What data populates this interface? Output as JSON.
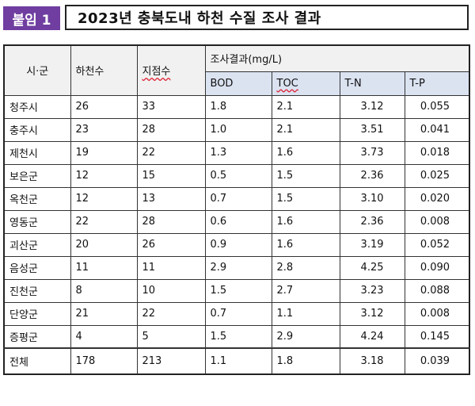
{
  "badge": "붙임 1",
  "title": "2023년 충북도내 하천 수질 조사 결과",
  "table": {
    "headers": {
      "region": "시·군",
      "rivers": "하천수",
      "sites": "지점수",
      "results_group": "조사결과(mg/L)",
      "bod": "BOD",
      "toc": "TOC",
      "tn": "T-N",
      "tp": "T-P"
    },
    "rows": [
      [
        "청주시",
        "26",
        "33",
        "1.8",
        "2.1",
        "3.12",
        "0.055"
      ],
      [
        "충주시",
        "23",
        "28",
        "1.0",
        "2.1",
        "3.51",
        "0.041"
      ],
      [
        "제천시",
        "19",
        "22",
        "1.3",
        "1.6",
        "3.73",
        "0.018"
      ],
      [
        "보은군",
        "12",
        "15",
        "0.5",
        "1.5",
        "2.36",
        "0.025"
      ],
      [
        "옥천군",
        "12",
        "13",
        "0.7",
        "1.5",
        "3.10",
        "0.020"
      ],
      [
        "영동군",
        "22",
        "28",
        "0.6",
        "1.6",
        "2.36",
        "0.008"
      ],
      [
        "괴산군",
        "20",
        "26",
        "0.9",
        "1.6",
        "3.19",
        "0.052"
      ],
      [
        "음성군",
        "11",
        "11",
        "2.9",
        "2.8",
        "4.25",
        "0.090"
      ],
      [
        "진천군",
        "8",
        "10",
        "1.5",
        "2.7",
        "3.23",
        "0.088"
      ],
      [
        "단양군",
        "21",
        "22",
        "0.7",
        "1.1",
        "3.12",
        "0.008"
      ],
      [
        "증평군",
        "4",
        "5",
        "1.5",
        "2.9",
        "4.24",
        "0.145"
      ]
    ],
    "total": [
      "전체",
      "178",
      "213",
      "1.1",
      "1.8",
      "3.18",
      "0.039"
    ]
  }
}
